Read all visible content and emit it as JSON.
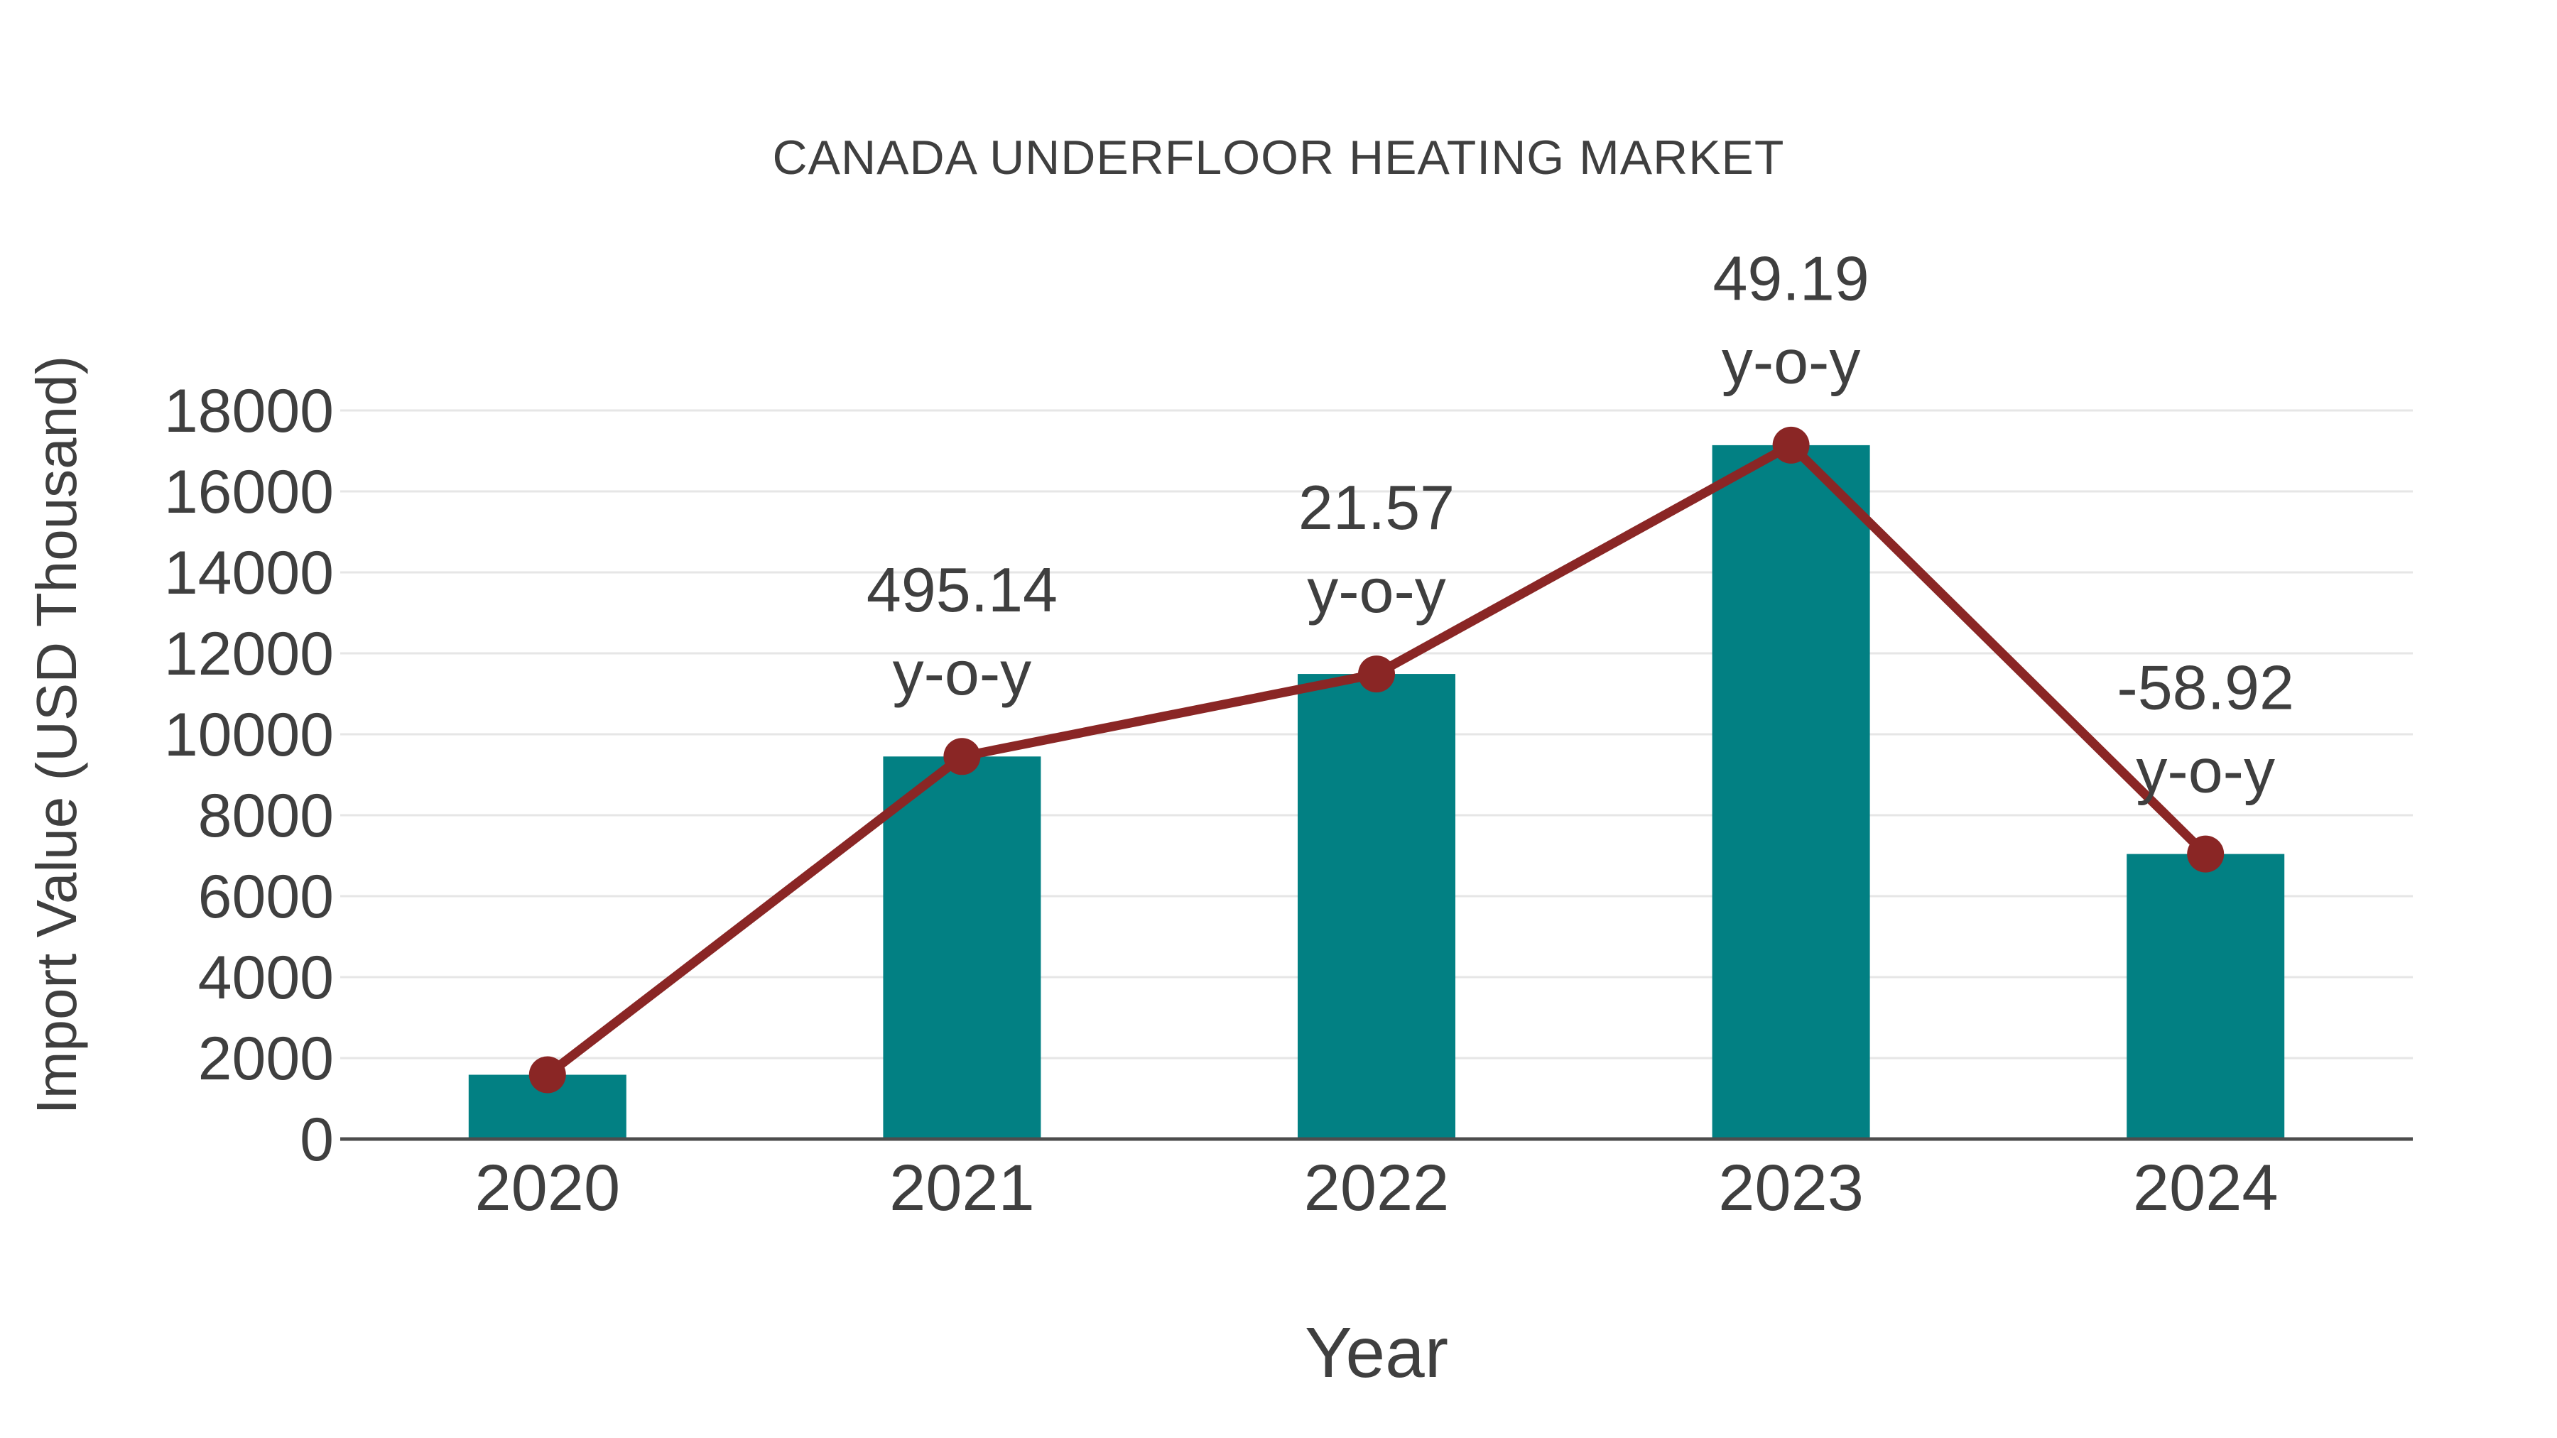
{
  "colors": {
    "bar": "#028083",
    "line": "#8A2625",
    "marker": "#8A2625",
    "text": "#3F3F3F",
    "grid": "#E6E6E6",
    "axis": "#4D4D4D",
    "background": "#FFFFFF"
  },
  "chart_data": {
    "type": "bar",
    "title": "CANADA UNDERFLOOR HEATING MARKET",
    "xlabel": "Year",
    "ylabel": "Import Value (USD Thousand)",
    "categories": [
      "2020",
      "2021",
      "2022",
      "2023",
      "2024"
    ],
    "series": [
      {
        "name": "Import Value (USD Thousand)",
        "type": "bar",
        "values": [
          1588,
          9451,
          11490,
          17142,
          7042
        ]
      },
      {
        "name": "y-o-y trend",
        "type": "line",
        "values": [
          1588,
          9451,
          11490,
          17142,
          7042
        ]
      }
    ],
    "annotations": [
      {
        "category": "2021",
        "value_text": "495.14",
        "label_text": "y-o-y"
      },
      {
        "category": "2022",
        "value_text": "21.57",
        "label_text": "y-o-y"
      },
      {
        "category": "2023",
        "value_text": "49.19",
        "label_text": "y-o-y"
      },
      {
        "category": "2024",
        "value_text": "-58.92",
        "label_text": "y-o-y"
      }
    ],
    "ylim": [
      0,
      18000
    ],
    "ytick_step": 2000,
    "yticks": [
      "0",
      "2000",
      "4000",
      "6000",
      "8000",
      "10000",
      "12000",
      "14000",
      "16000",
      "18000"
    ],
    "grid": true,
    "legend": false
  }
}
